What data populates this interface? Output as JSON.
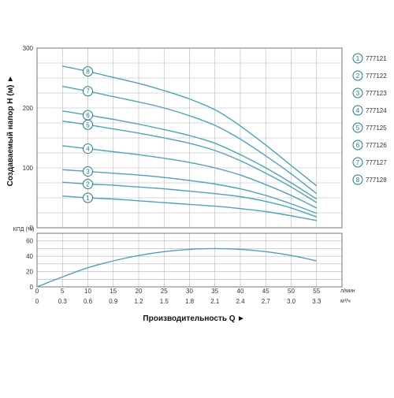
{
  "colors": {
    "curve": "#4da3b8",
    "grid": "#b5b5b5",
    "frame": "#777777",
    "text": "#333333",
    "marker": "#1e7a8f"
  },
  "chart_data": [
    {
      "type": "line",
      "ylabel": "Создаваемый напор Н (м)",
      "ylim": [
        0,
        300
      ],
      "yticks": [
        0,
        100,
        200,
        300
      ],
      "xlim": [
        0,
        60
      ],
      "grid": true,
      "legend_position": "right",
      "series": [
        {
          "name": "777121",
          "marker": "1",
          "x": [
            5,
            10,
            15,
            20,
            25,
            30,
            35,
            40,
            45,
            50,
            55
          ],
          "y": [
            53,
            50,
            48,
            45,
            42,
            39,
            36,
            32,
            27,
            20,
            12
          ]
        },
        {
          "name": "777122",
          "marker": "2",
          "x": [
            5,
            10,
            15,
            20,
            25,
            30,
            35,
            40,
            45,
            50,
            55
          ],
          "y": [
            76,
            73,
            71,
            68,
            65,
            61,
            57,
            52,
            44,
            33,
            18
          ]
        },
        {
          "name": "777123",
          "marker": "3",
          "x": [
            5,
            10,
            15,
            20,
            25,
            30,
            35,
            40,
            45,
            50,
            55
          ],
          "y": [
            97,
            94,
            91,
            88,
            84,
            79,
            73,
            65,
            54,
            40,
            24
          ]
        },
        {
          "name": "777124",
          "marker": "4",
          "x": [
            5,
            10,
            15,
            20,
            25,
            30,
            35,
            40,
            45,
            50,
            55
          ],
          "y": [
            137,
            132,
            127,
            122,
            116,
            109,
            100,
            88,
            72,
            54,
            33
          ]
        },
        {
          "name": "777125",
          "marker": "5",
          "x": [
            5,
            10,
            15,
            20,
            25,
            30,
            35,
            40,
            45,
            50,
            55
          ],
          "y": [
            178,
            172,
            165,
            158,
            150,
            141,
            129,
            112,
            91,
            68,
            42
          ]
        },
        {
          "name": "777126",
          "marker": "6",
          "x": [
            5,
            10,
            15,
            20,
            25,
            30,
            35,
            40,
            45,
            50,
            55
          ],
          "y": [
            195,
            188,
            181,
            173,
            164,
            154,
            141,
            122,
            100,
            75,
            48
          ]
        },
        {
          "name": "777127",
          "marker": "7",
          "x": [
            5,
            10,
            15,
            20,
            25,
            30,
            35,
            40,
            45,
            50,
            55
          ],
          "y": [
            236,
            228,
            219,
            210,
            200,
            187,
            171,
            148,
            120,
            90,
            57
          ]
        },
        {
          "name": "777128",
          "marker": "8",
          "x": [
            5,
            10,
            15,
            20,
            25,
            30,
            35,
            40,
            45,
            50,
            55
          ],
          "y": [
            270,
            261,
            251,
            241,
            229,
            215,
            197,
            170,
            138,
            104,
            70
          ]
        }
      ]
    },
    {
      "type": "line",
      "ylabel": "КПД (%)",
      "ylim": [
        0,
        70
      ],
      "yticks": [
        0,
        20,
        40,
        60
      ],
      "xlim": [
        0,
        60
      ],
      "xticks_lmin": [
        0,
        5,
        10,
        15,
        20,
        25,
        30,
        35,
        40,
        45,
        50,
        55
      ],
      "xticks_m3h": [
        "0",
        "0.3",
        "0.6",
        "0.9",
        "1.2",
        "1.5",
        "1.8",
        "2.1",
        "2.4",
        "2.7",
        "3.0",
        "3.3"
      ],
      "xunit_lmin": "л/мин",
      "xunit_m3h": "м³/ч",
      "xlabel": "Производительность Q",
      "grid": true,
      "series": [
        {
          "x": [
            0,
            5,
            10,
            15,
            20,
            25,
            30,
            35,
            40,
            45,
            50,
            55
          ],
          "y": [
            0,
            13,
            25,
            34,
            41,
            46,
            49,
            50,
            49,
            46,
            41,
            34
          ]
        }
      ]
    }
  ]
}
